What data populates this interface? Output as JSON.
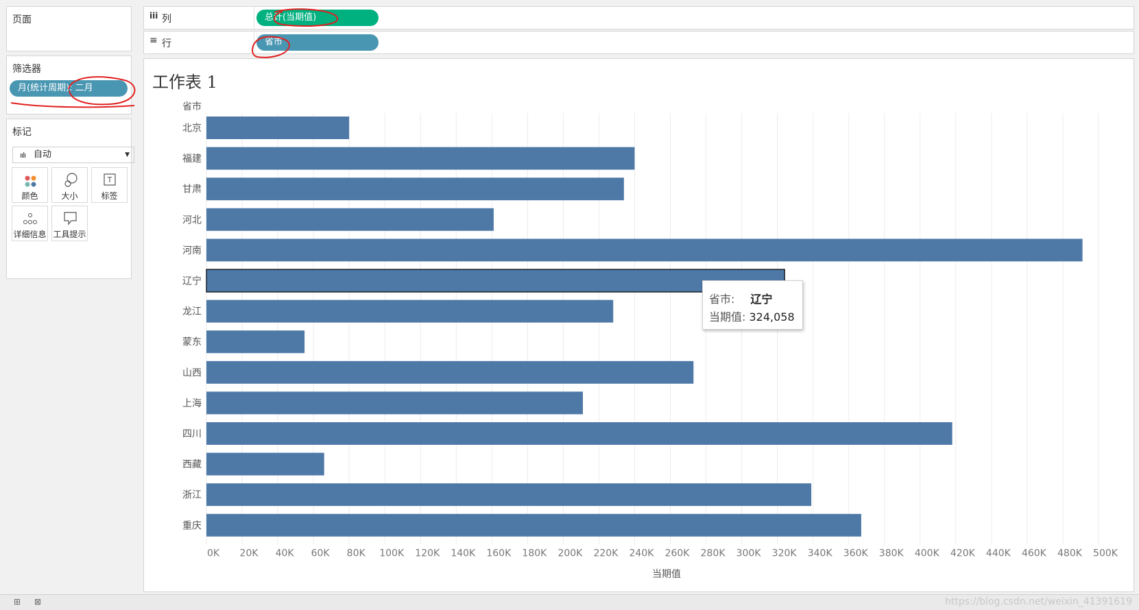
{
  "sidebar": {
    "pages_title": "页面",
    "filters_title": "筛选器",
    "filter_pill": "月(统计周期): 二月",
    "marks_title": "标记",
    "marks_type": "自动",
    "mark_buttons": {
      "color": "颜色",
      "size": "大小",
      "label": "标签",
      "detail": "详细信息",
      "tooltip": "工具提示"
    }
  },
  "shelves": {
    "columns_label": "列",
    "columns_pill": "总计(当期值)",
    "rows_label": "行",
    "rows_pill": "省市"
  },
  "worksheet": {
    "title": "工作表 1"
  },
  "colors": {
    "bar": "#4e79a7",
    "columns_pill": "#00b180",
    "rows_pill": "#4996b2",
    "filter_pill": "#4996b2",
    "annotation": "#e02020"
  },
  "chart_data": {
    "type": "bar",
    "orientation": "horizontal",
    "row_header": "省市",
    "categories": [
      "北京",
      "福建",
      "甘肃",
      "河北",
      "河南",
      "辽宁",
      "龙江",
      "蒙东",
      "山西",
      "上海",
      "四川",
      "西藏",
      "浙江",
      "重庆"
    ],
    "values": [
      80000,
      240000,
      234000,
      161000,
      491000,
      324058,
      228000,
      55000,
      273000,
      211000,
      418000,
      66000,
      339000,
      367000
    ],
    "xlabel": "当期值",
    "xlim": [
      0,
      500000
    ],
    "xticks": [
      "0K",
      "20K",
      "40K",
      "60K",
      "80K",
      "100K",
      "120K",
      "140K",
      "160K",
      "180K",
      "200K",
      "220K",
      "240K",
      "260K",
      "280K",
      "300K",
      "320K",
      "340K",
      "360K",
      "380K",
      "400K",
      "420K",
      "440K",
      "460K",
      "480K",
      "500K"
    ],
    "grid": "vertical",
    "highlighted": "辽宁"
  },
  "tooltip": {
    "key1": "省市:",
    "val1": "辽宁",
    "key2": "当期值:",
    "val2": "324,058"
  },
  "watermark": "https://blog.csdn.net/weixin_41391619"
}
